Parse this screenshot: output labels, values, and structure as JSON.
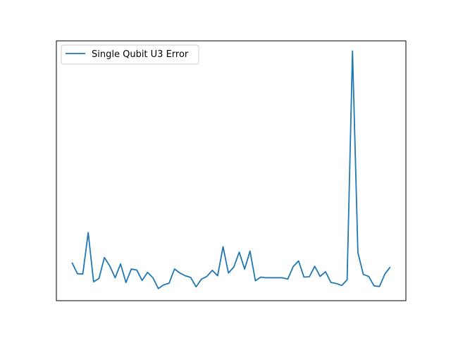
{
  "chart_data": {
    "type": "line",
    "title": "",
    "xlabel": "",
    "ylabel": "",
    "x_ticks_visible": false,
    "y_ticks_visible": false,
    "grid": false,
    "legend_position": "top-left",
    "xlim": [
      -2.9,
      61.9
    ],
    "ylim": [
      -0.0028,
      0.0743
    ],
    "series": [
      {
        "name": "Single Qubit U3 Error",
        "color": "#1f77b4",
        "x": [
          0,
          1,
          2,
          3,
          4,
          5,
          6,
          7,
          8,
          9,
          10,
          11,
          12,
          13,
          14,
          15,
          16,
          17,
          18,
          19,
          20,
          21,
          22,
          23,
          24,
          25,
          26,
          27,
          28,
          29,
          30,
          31,
          32,
          33,
          34,
          35,
          36,
          37,
          38,
          39,
          40,
          41,
          42,
          43,
          44,
          45,
          46,
          47,
          48,
          49,
          50,
          51,
          52,
          53,
          54,
          55,
          56,
          57,
          58,
          59
        ],
        "values": [
          0.0085,
          0.0052,
          0.0051,
          0.0174,
          0.0028,
          0.0038,
          0.01,
          0.0075,
          0.004,
          0.0081,
          0.0026,
          0.0066,
          0.0063,
          0.0032,
          0.0056,
          0.004,
          0.0008,
          0.0019,
          0.0024,
          0.0066,
          0.0054,
          0.0046,
          0.0041,
          0.0013,
          0.0036,
          0.0044,
          0.0062,
          0.0046,
          0.0132,
          0.0054,
          0.0072,
          0.0116,
          0.0066,
          0.0119,
          0.0031,
          0.0042,
          0.004,
          0.004,
          0.004,
          0.004,
          0.0036,
          0.0073,
          0.009,
          0.0042,
          0.0043,
          0.0074,
          0.0044,
          0.0058,
          0.0026,
          0.0023,
          0.0017,
          0.0034,
          0.0713,
          0.0115,
          0.005,
          0.0044,
          0.0016,
          0.0014,
          0.0051,
          0.0072
        ]
      }
    ]
  }
}
